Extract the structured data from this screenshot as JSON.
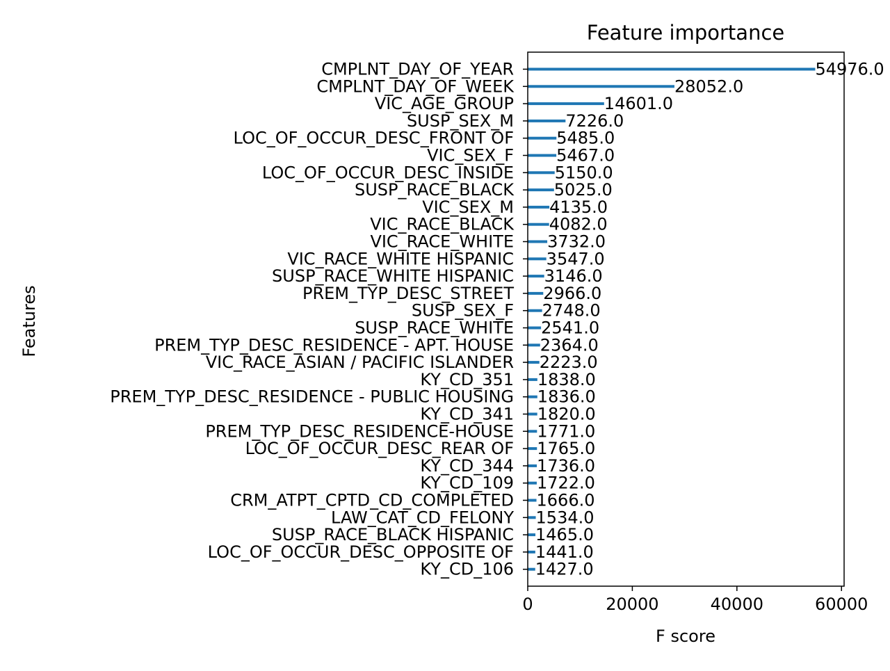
{
  "chart_data": {
    "type": "bar",
    "orientation": "horizontal",
    "title": "Feature importance",
    "xlabel": "F score",
    "ylabel": "Features",
    "xlim": [
      0,
      60500
    ],
    "xticks": [
      0,
      20000,
      40000,
      60000
    ],
    "xtick_labels": [
      "0",
      "20000",
      "40000",
      "60000"
    ],
    "grid": false,
    "color": "#1f77b4",
    "categories": [
      "CMPLNT_DAY_OF_YEAR",
      "CMPLNT_DAY_OF_WEEK",
      "VIC_AGE_GROUP",
      "SUSP_SEX_M",
      "LOC_OF_OCCUR_DESC_FRONT OF",
      "VIC_SEX_F",
      "LOC_OF_OCCUR_DESC_INSIDE",
      "SUSP_RACE_BLACK",
      "VIC_SEX_M",
      "VIC_RACE_BLACK",
      "VIC_RACE_WHITE",
      "VIC_RACE_WHITE HISPANIC",
      "SUSP_RACE_WHITE HISPANIC",
      "PREM_TYP_DESC_STREET",
      "SUSP_SEX_F",
      "SUSP_RACE_WHITE",
      "PREM_TYP_DESC_RESIDENCE - APT. HOUSE",
      "VIC_RACE_ASIAN / PACIFIC ISLANDER",
      "KY_CD_351",
      "PREM_TYP_DESC_RESIDENCE - PUBLIC HOUSING",
      "KY_CD_341",
      "PREM_TYP_DESC_RESIDENCE-HOUSE",
      "LOC_OF_OCCUR_DESC_REAR OF",
      "KY_CD_344",
      "KY_CD_109",
      "CRM_ATPT_CPTD_CD_COMPLETED",
      "LAW_CAT_CD_FELONY",
      "SUSP_RACE_BLACK HISPANIC",
      "LOC_OF_OCCUR_DESC_OPPOSITE OF",
      "KY_CD_106"
    ],
    "values": [
      54976.0,
      28052.0,
      14601.0,
      7226.0,
      5485.0,
      5467.0,
      5150.0,
      5025.0,
      4135.0,
      4082.0,
      3732.0,
      3547.0,
      3146.0,
      2966.0,
      2748.0,
      2541.0,
      2364.0,
      2223.0,
      1838.0,
      1836.0,
      1820.0,
      1771.0,
      1765.0,
      1736.0,
      1722.0,
      1666.0,
      1534.0,
      1465.0,
      1441.0,
      1427.0
    ],
    "value_labels": [
      "54976.0",
      "28052.0",
      "14601.0",
      "7226.0",
      "5485.0",
      "5467.0",
      "5150.0",
      "5025.0",
      "4135.0",
      "4082.0",
      "3732.0",
      "3547.0",
      "3146.0",
      "2966.0",
      "2748.0",
      "2541.0",
      "2364.0",
      "2223.0",
      "1838.0",
      "1836.0",
      "1820.0",
      "1771.0",
      "1765.0",
      "1736.0",
      "1722.0",
      "1666.0",
      "1534.0",
      "1465.0",
      "1441.0",
      "1427.0"
    ]
  }
}
